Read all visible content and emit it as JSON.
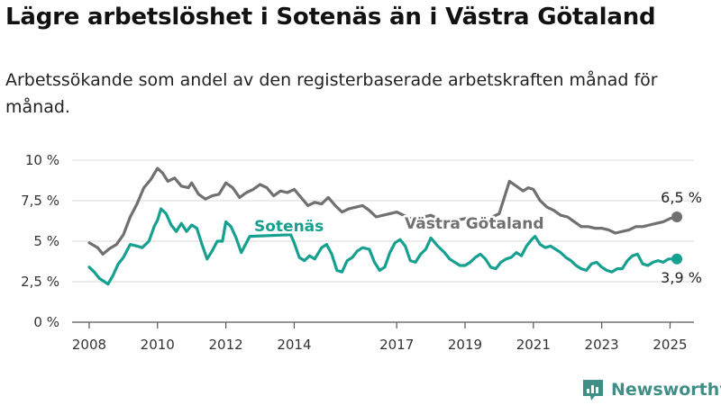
{
  "header": {
    "title": "Lägre arbetslöshet i Sotenäs än i Västra Götaland",
    "subtitle": "Arbetssökande som andel av den registerbaserade arbetskraften månad för månad."
  },
  "brand": {
    "name": "Newsworthy"
  },
  "colors": {
    "sotenas": "#16a090",
    "vastra": "#707070",
    "grid": "#d9d9d9",
    "axis": "#555555"
  },
  "chart_data": {
    "type": "line",
    "y_ticks": [
      {
        "value": 0,
        "label": "0 %"
      },
      {
        "value": 2.5,
        "label": "2,5 %"
      },
      {
        "value": 5,
        "label": "5 %"
      },
      {
        "value": 7.5,
        "label": "7,5 %"
      },
      {
        "value": 10,
        "label": "10 %"
      }
    ],
    "x_ticks": [
      "2008",
      "2010",
      "2012",
      "2014",
      "2017",
      "2019",
      "2021",
      "2023",
      "2025"
    ],
    "ylim": [
      0,
      10
    ],
    "xlim": [
      2007.5,
      2025.7
    ],
    "grid": true,
    "series": [
      {
        "name": "Västra Götaland",
        "color_key": "vastra",
        "end_label": "6,5 %",
        "points": [
          [
            2008.0,
            4.9
          ],
          [
            2008.25,
            4.6
          ],
          [
            2008.4,
            4.2
          ],
          [
            2008.6,
            4.55
          ],
          [
            2008.8,
            4.8
          ],
          [
            2009.0,
            5.4
          ],
          [
            2009.2,
            6.5
          ],
          [
            2009.4,
            7.3
          ],
          [
            2009.6,
            8.3
          ],
          [
            2009.8,
            8.8
          ],
          [
            2010.0,
            9.5
          ],
          [
            2010.15,
            9.2
          ],
          [
            2010.3,
            8.7
          ],
          [
            2010.5,
            8.9
          ],
          [
            2010.7,
            8.4
          ],
          [
            2010.9,
            8.3
          ],
          [
            2011.0,
            8.6
          ],
          [
            2011.2,
            7.9
          ],
          [
            2011.4,
            7.6
          ],
          [
            2011.6,
            7.8
          ],
          [
            2011.8,
            7.9
          ],
          [
            2012.0,
            8.6
          ],
          [
            2012.2,
            8.3
          ],
          [
            2012.4,
            7.7
          ],
          [
            2012.6,
            8.0
          ],
          [
            2012.8,
            8.2
          ],
          [
            2013.0,
            8.5
          ],
          [
            2013.2,
            8.3
          ],
          [
            2013.4,
            7.8
          ],
          [
            2013.6,
            8.1
          ],
          [
            2013.8,
            8.0
          ],
          [
            2014.0,
            8.2
          ],
          [
            2014.2,
            7.7
          ],
          [
            2014.4,
            7.2
          ],
          [
            2014.6,
            7.4
          ],
          [
            2014.8,
            7.3
          ],
          [
            2015.0,
            7.7
          ],
          [
            2015.2,
            7.2
          ],
          [
            2015.4,
            6.8
          ],
          [
            2015.6,
            7.0
          ],
          [
            2015.8,
            7.1
          ],
          [
            2016.0,
            7.2
          ],
          [
            2016.2,
            6.9
          ],
          [
            2016.4,
            6.5
          ],
          [
            2016.6,
            6.6
          ],
          [
            2016.8,
            6.7
          ],
          [
            2017.0,
            6.8
          ],
          [
            2017.2,
            6.6
          ],
          [
            2017.4,
            6.4
          ],
          [
            2017.6,
            6.5
          ],
          [
            2017.8,
            6.5
          ],
          [
            2018.0,
            6.6
          ],
          [
            2018.2,
            6.4
          ],
          [
            2018.4,
            6.2
          ],
          [
            2018.6,
            6.3
          ],
          [
            2018.8,
            6.3
          ],
          [
            2019.0,
            6.4
          ],
          [
            2019.2,
            6.3
          ],
          [
            2019.4,
            6.2
          ],
          [
            2019.6,
            6.4
          ],
          [
            2019.8,
            6.5
          ],
          [
            2020.0,
            6.7
          ],
          [
            2020.15,
            7.7
          ],
          [
            2020.3,
            8.7
          ],
          [
            2020.5,
            8.4
          ],
          [
            2020.7,
            8.1
          ],
          [
            2020.85,
            8.3
          ],
          [
            2021.0,
            8.2
          ],
          [
            2021.2,
            7.5
          ],
          [
            2021.4,
            7.1
          ],
          [
            2021.6,
            6.9
          ],
          [
            2021.8,
            6.6
          ],
          [
            2022.0,
            6.5
          ],
          [
            2022.2,
            6.2
          ],
          [
            2022.4,
            5.9
          ],
          [
            2022.6,
            5.9
          ],
          [
            2022.8,
            5.8
          ],
          [
            2023.0,
            5.8
          ],
          [
            2023.2,
            5.7
          ],
          [
            2023.4,
            5.5
          ],
          [
            2023.6,
            5.6
          ],
          [
            2023.8,
            5.7
          ],
          [
            2024.0,
            5.9
          ],
          [
            2024.2,
            5.9
          ],
          [
            2024.4,
            6.0
          ],
          [
            2024.6,
            6.1
          ],
          [
            2024.8,
            6.2
          ],
          [
            2025.0,
            6.4
          ],
          [
            2025.2,
            6.5
          ]
        ]
      },
      {
        "name": "Sotenäs",
        "color_key": "sotenas",
        "end_label": "3,9 %",
        "points": [
          [
            2008.0,
            3.4
          ],
          [
            2008.15,
            3.1
          ],
          [
            2008.3,
            2.7
          ],
          [
            2008.45,
            2.5
          ],
          [
            2008.55,
            2.35
          ],
          [
            2008.7,
            2.9
          ],
          [
            2008.85,
            3.6
          ],
          [
            2009.0,
            4.0
          ],
          [
            2009.2,
            4.8
          ],
          [
            2009.4,
            4.7
          ],
          [
            2009.55,
            4.6
          ],
          [
            2009.75,
            5.0
          ],
          [
            2009.9,
            5.9
          ],
          [
            2010.0,
            6.3
          ],
          [
            2010.1,
            7.0
          ],
          [
            2010.25,
            6.7
          ],
          [
            2010.4,
            6.0
          ],
          [
            2010.55,
            5.6
          ],
          [
            2010.7,
            6.1
          ],
          [
            2010.85,
            5.6
          ],
          [
            2011.0,
            6.0
          ],
          [
            2011.15,
            5.8
          ],
          [
            2011.3,
            4.8
          ],
          [
            2011.45,
            3.9
          ],
          [
            2011.6,
            4.4
          ],
          [
            2011.75,
            5.0
          ],
          [
            2011.9,
            5.0
          ],
          [
            2012.0,
            6.2
          ],
          [
            2012.15,
            5.9
          ],
          [
            2012.3,
            5.2
          ],
          [
            2012.45,
            4.3
          ],
          [
            2012.6,
            4.9
          ],
          [
            2012.7,
            5.3
          ],
          [
            2013.9,
            5.4
          ],
          [
            2014.0,
            4.9
          ],
          [
            2014.15,
            4.0
          ],
          [
            2014.3,
            3.8
          ],
          [
            2014.45,
            4.1
          ],
          [
            2014.6,
            3.9
          ],
          [
            2014.8,
            4.6
          ],
          [
            2014.95,
            4.8
          ],
          [
            2015.1,
            4.2
          ],
          [
            2015.25,
            3.2
          ],
          [
            2015.4,
            3.1
          ],
          [
            2015.55,
            3.8
          ],
          [
            2015.7,
            4.0
          ],
          [
            2015.85,
            4.4
          ],
          [
            2016.0,
            4.6
          ],
          [
            2016.2,
            4.5
          ],
          [
            2016.35,
            3.7
          ],
          [
            2016.5,
            3.2
          ],
          [
            2016.65,
            3.4
          ],
          [
            2016.8,
            4.3
          ],
          [
            2016.95,
            4.9
          ],
          [
            2017.1,
            5.1
          ],
          [
            2017.25,
            4.7
          ],
          [
            2017.4,
            3.8
          ],
          [
            2017.55,
            3.7
          ],
          [
            2017.7,
            4.2
          ],
          [
            2017.85,
            4.5
          ],
          [
            2018.0,
            5.2
          ],
          [
            2018.2,
            4.7
          ],
          [
            2018.4,
            4.3
          ],
          [
            2018.55,
            3.9
          ],
          [
            2018.7,
            3.7
          ],
          [
            2018.85,
            3.5
          ],
          [
            2019.0,
            3.5
          ],
          [
            2019.15,
            3.7
          ],
          [
            2019.3,
            4.0
          ],
          [
            2019.45,
            4.2
          ],
          [
            2019.6,
            3.9
          ],
          [
            2019.75,
            3.4
          ],
          [
            2019.9,
            3.3
          ],
          [
            2020.05,
            3.7
          ],
          [
            2020.2,
            3.9
          ],
          [
            2020.35,
            4.0
          ],
          [
            2020.5,
            4.3
          ],
          [
            2020.65,
            4.1
          ],
          [
            2020.8,
            4.7
          ],
          [
            2020.95,
            5.1
          ],
          [
            2021.05,
            5.3
          ],
          [
            2021.2,
            4.8
          ],
          [
            2021.35,
            4.6
          ],
          [
            2021.5,
            4.7
          ],
          [
            2021.65,
            4.5
          ],
          [
            2021.8,
            4.3
          ],
          [
            2021.95,
            4.0
          ],
          [
            2022.1,
            3.8
          ],
          [
            2022.25,
            3.5
          ],
          [
            2022.4,
            3.3
          ],
          [
            2022.55,
            3.2
          ],
          [
            2022.7,
            3.6
          ],
          [
            2022.85,
            3.7
          ],
          [
            2023.0,
            3.4
          ],
          [
            2023.15,
            3.2
          ],
          [
            2023.3,
            3.1
          ],
          [
            2023.45,
            3.3
          ],
          [
            2023.6,
            3.3
          ],
          [
            2023.75,
            3.8
          ],
          [
            2023.9,
            4.1
          ],
          [
            2024.05,
            4.2
          ],
          [
            2024.2,
            3.6
          ],
          [
            2024.35,
            3.5
          ],
          [
            2024.5,
            3.7
          ],
          [
            2024.65,
            3.8
          ],
          [
            2024.8,
            3.7
          ],
          [
            2024.95,
            3.9
          ],
          [
            2025.1,
            3.9
          ],
          [
            2025.2,
            3.9
          ]
        ]
      }
    ]
  }
}
